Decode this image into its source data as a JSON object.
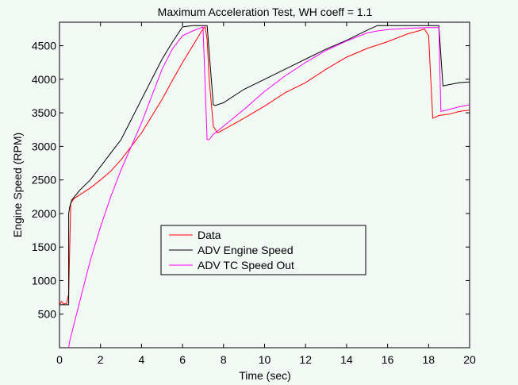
{
  "chart_data": {
    "type": "line",
    "title": "Maximum Acceleration Test, WH coeff = 1.1",
    "xlabel": "Time (sec)",
    "ylabel": "Engine Speed (RPM)",
    "xlim": [
      0,
      20
    ],
    "ylim": [
      0,
      4850
    ],
    "xticks": [
      0,
      2,
      4,
      6,
      8,
      10,
      12,
      14,
      16,
      18,
      20
    ],
    "yticks": [
      500,
      1000,
      1500,
      2000,
      2500,
      3000,
      3500,
      4000,
      4500
    ],
    "grid": false,
    "legend_position": "center-bottom",
    "series": [
      {
        "name": "Data",
        "color": "#ff0000",
        "x": [
          0,
          0.1,
          0.2,
          0.35,
          0.45,
          0.5,
          0.55,
          0.7,
          1,
          1.5,
          2,
          2.5,
          3,
          3.5,
          4,
          4.5,
          5,
          5.5,
          6,
          6.5,
          7,
          7.1,
          7.2,
          7.3,
          7.5,
          7.7,
          8,
          9,
          10,
          11,
          12,
          13,
          14,
          15,
          16,
          17,
          17.5,
          17.8,
          18,
          18.2,
          18.5,
          19,
          19.5,
          20
        ],
        "y": [
          640,
          690,
          650,
          660,
          800,
          1500,
          2150,
          2220,
          2280,
          2380,
          2500,
          2630,
          2800,
          3000,
          3200,
          3450,
          3700,
          3980,
          4250,
          4500,
          4750,
          4780,
          4600,
          4000,
          3300,
          3200,
          3250,
          3420,
          3600,
          3800,
          3950,
          4150,
          4330,
          4460,
          4560,
          4680,
          4720,
          4750,
          4650,
          3420,
          3460,
          3480,
          3520,
          3540
        ]
      },
      {
        "name": "ADV Engine Speed",
        "color": "#000000",
        "x": [
          0,
          0.45,
          0.45,
          0.5,
          0.6,
          1,
          1.5,
          2,
          2.5,
          3,
          3.5,
          4,
          4.5,
          5,
          5.5,
          6,
          6.5,
          7,
          7.2,
          7.5,
          7.6,
          8,
          9,
          10,
          11,
          12,
          13,
          14,
          15,
          15.5,
          16,
          17,
          18,
          18.5,
          18.7,
          19,
          19.5,
          20
        ],
        "y": [
          640,
          640,
          2000,
          2100,
          2200,
          2350,
          2500,
          2700,
          2900,
          3100,
          3400,
          3700,
          4000,
          4300,
          4550,
          4780,
          4800,
          4800,
          4800,
          3620,
          3610,
          3650,
          3850,
          4000,
          4150,
          4300,
          4450,
          4580,
          4730,
          4800,
          4800,
          4800,
          4800,
          4800,
          3900,
          3920,
          3950,
          3960
        ]
      },
      {
        "name": "ADV TC Speed Out",
        "color": "#ff00ff",
        "x": [
          0.45,
          0.5,
          1,
          1.5,
          2,
          2.5,
          3,
          3.5,
          4,
          4.5,
          5,
          5.5,
          6,
          6.5,
          7,
          7.2,
          7.3,
          7.5,
          8,
          9,
          10,
          11,
          12,
          13,
          14,
          15,
          15.5,
          16,
          17,
          18,
          18.5,
          18.6,
          19,
          19.5,
          20
        ],
        "y": [
          0,
          100,
          700,
          1300,
          1800,
          2250,
          2650,
          3000,
          3350,
          3750,
          4150,
          4450,
          4650,
          4720,
          4780,
          3100,
          3100,
          3180,
          3300,
          3550,
          3820,
          4050,
          4250,
          4430,
          4570,
          4690,
          4720,
          4740,
          4760,
          4770,
          4770,
          3520,
          3550,
          3590,
          3620
        ]
      }
    ]
  }
}
